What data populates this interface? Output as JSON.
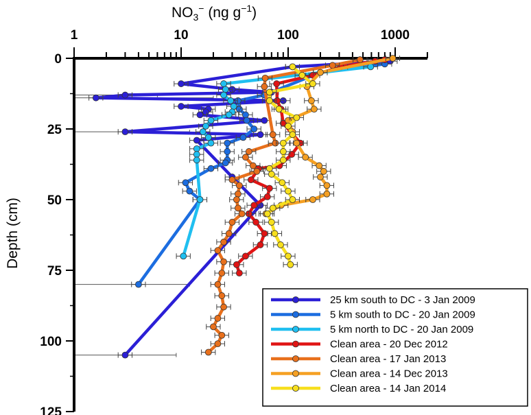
{
  "chart_data": {
    "type": "line",
    "title": "",
    "xlabel": "NO3⁻ (ng g⁻¹)",
    "xlabel_main": "NO",
    "xlabel_sub": "3",
    "xlabel_sup": "−",
    "xlabel_units": " (ng g",
    "xlabel_units_sup": "−1",
    "xlabel_close": ")",
    "ylabel": "Depth (cm)",
    "xscale": "log",
    "xlim": [
      1,
      2000
    ],
    "ylim": [
      0,
      125
    ],
    "yinverted": true,
    "xaxis_position": "top",
    "xticks": [
      "1",
      "10",
      "100",
      "1000"
    ],
    "yticks": [
      "0",
      "25",
      "50",
      "75",
      "100",
      "125"
    ],
    "grid": false,
    "legend_position": "bottom-right",
    "series": [
      {
        "name": "25 km south to DC - 3 Jan 2009",
        "color": "#2b1fd6",
        "x": [
          900,
          110,
          10,
          30,
          70,
          3,
          1.6,
          90,
          10,
          18,
          17,
          15,
          60,
          3,
          55,
          14,
          30,
          55,
          3
        ],
        "depth": [
          1,
          3,
          9,
          11,
          12,
          13,
          14,
          15,
          17,
          18,
          19,
          20,
          22,
          26,
          27,
          29,
          42,
          52,
          105
        ]
      },
      {
        "name": "5 km south to DC - 20 Jan 2009",
        "color": "#1c6de0",
        "x": [
          800,
          200,
          60,
          34,
          35,
          40,
          41,
          48,
          38,
          27,
          27,
          27,
          26,
          19,
          11,
          12,
          15,
          4
        ],
        "depth": [
          2,
          5,
          13,
          15,
          18,
          20,
          22,
          25,
          28,
          30,
          33,
          36,
          37,
          39,
          44,
          47,
          50,
          80
        ]
      },
      {
        "name": "5 km north to DC - 20 Jan 2009",
        "color": "#20bff0",
        "x": [
          590,
          25,
          26,
          25,
          29,
          31,
          30,
          28,
          19,
          17,
          16,
          18,
          19,
          14,
          14,
          14,
          15,
          10.5
        ],
        "depth": [
          3,
          9,
          11,
          13,
          15,
          17,
          19,
          20,
          22,
          24,
          26,
          28,
          30,
          32,
          34,
          36,
          50,
          70
        ]
      },
      {
        "name": "Clean area - 20 Dec 2012",
        "color": "#e01414",
        "x": [
          800,
          650,
          310,
          170,
          78,
          79,
          86,
          90,
          130,
          108,
          83,
          53,
          45,
          67,
          64,
          48,
          43,
          50,
          60,
          55,
          40,
          33,
          35
        ],
        "depth": [
          0.5,
          1,
          3,
          6,
          9,
          15,
          18,
          23,
          30,
          34,
          38,
          39,
          43,
          46,
          49,
          52,
          55,
          58,
          62,
          66,
          70,
          73,
          76
        ]
      },
      {
        "name": "Clean area - 17 Jan 2013",
        "color": "#e8701c",
        "x": [
          470,
          260,
          61,
          60,
          72,
          76,
          43,
          40,
          47,
          51,
          30,
          35,
          34,
          33,
          34,
          37,
          30,
          28,
          25,
          22,
          25,
          24,
          22,
          24,
          25,
          22,
          20,
          24,
          22,
          18
        ],
        "depth": [
          0.5,
          2.5,
          7,
          10,
          27,
          30,
          33,
          35,
          38,
          40,
          43,
          45,
          48,
          50,
          53,
          55,
          58,
          62,
          65,
          68,
          72,
          76,
          80,
          84,
          88,
          92,
          95,
          98,
          101,
          104
        ]
      },
      {
        "name": "Clean area - 14 Dec 2013",
        "color": "#f5a023",
        "x": [
          950,
          200,
          150,
          165,
          175,
          100,
          110,
          120,
          145,
          195,
          215,
          200,
          230,
          230,
          170,
          86,
          62
        ],
        "depth": [
          0,
          5,
          10,
          15,
          18,
          22,
          26,
          30,
          35,
          38,
          40,
          42,
          45,
          48,
          50,
          52,
          55
        ]
      },
      {
        "name": "Clean area - 14 Jan 2014",
        "color": "#f7df1e",
        "x": [
          110,
          135,
          170,
          67,
          67,
          82,
          120,
          100,
          110,
          90,
          90,
          90,
          67,
          70,
          88,
          100,
          110,
          72,
          64,
          70,
          75,
          85,
          100,
          105
        ],
        "depth": [
          3,
          6,
          9,
          12,
          15,
          18,
          21,
          24,
          27,
          30,
          33,
          36,
          39,
          41,
          44,
          47,
          50,
          53,
          55,
          58,
          62,
          66,
          70,
          73
        ]
      }
    ],
    "large_error_bars": [
      {
        "series": 0,
        "depth": 14,
        "low": 1,
        "high": 20
      },
      {
        "series": 0,
        "depth": 13,
        "low": 1,
        "high": 6
      },
      {
        "series": 0,
        "depth": 26,
        "low": 1,
        "high": 12
      },
      {
        "series": 1,
        "depth": 80,
        "low": 1,
        "high": 12
      },
      {
        "series": 0,
        "depth": 105,
        "low": 1,
        "high": 9
      }
    ]
  }
}
